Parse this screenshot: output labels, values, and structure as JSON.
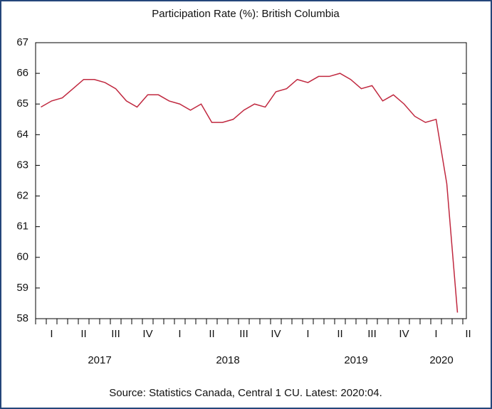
{
  "chart_data": {
    "type": "line",
    "title": "Participation Rate (%): British Columbia",
    "source": "Source: Statistics Canada, Central 1 CU. Latest: 2020:04.",
    "quarters": [
      "I",
      "II",
      "III",
      "IV",
      "I",
      "II",
      "III",
      "IV",
      "I",
      "II",
      "III",
      "IV",
      "I",
      "II"
    ],
    "years": [
      "2017",
      "2018",
      "2019",
      "2020"
    ],
    "series": [
      {
        "color": "#c0283f",
        "values": [
          64.9,
          65.1,
          65.2,
          65.5,
          65.8,
          65.8,
          65.7,
          65.5,
          65.1,
          64.9,
          65.3,
          65.3,
          65.1,
          65.0,
          64.8,
          65.0,
          64.4,
          64.4,
          64.5,
          64.8,
          65.0,
          64.9,
          65.4,
          65.5,
          65.8,
          65.7,
          65.9,
          65.9,
          66.0,
          65.8,
          65.5,
          65.6,
          65.1,
          65.3,
          65.0,
          64.6,
          64.4,
          64.5,
          62.4,
          58.2
        ]
      }
    ],
    "ylim": [
      58,
      67
    ],
    "yticks": [
      58,
      59,
      60,
      61,
      62,
      63,
      64,
      65,
      66,
      67
    ],
    "grid": false
  }
}
